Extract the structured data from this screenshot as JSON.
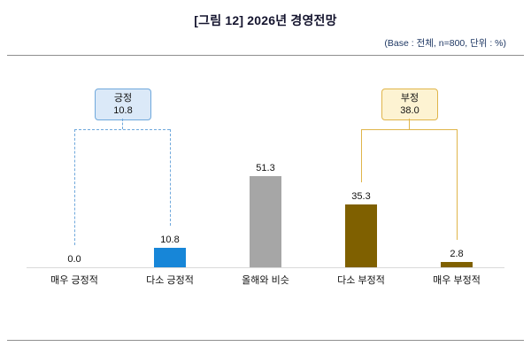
{
  "header": {
    "title": "[그림 12] 2026년 경영전망",
    "base_note": "(Base : 전체, n=800, 단위 : %)"
  },
  "chart_data": {
    "type": "bar",
    "title": "[그림 12] 2026년 경영전망",
    "categories": [
      "매우 긍정적",
      "다소 긍정적",
      "올해와 비슷",
      "다소 부정적",
      "매우 부정적"
    ],
    "values": [
      0.0,
      10.8,
      51.3,
      35.3,
      2.8
    ],
    "value_labels": [
      "0.0",
      "10.8",
      "51.3",
      "35.3",
      "2.8"
    ],
    "bar_colors": [
      "#1786d8",
      "#1786d8",
      "#a6a6a6",
      "#7f6000",
      "#7f6000"
    ],
    "xlabel": "",
    "ylabel": "",
    "ylim": [
      0,
      60
    ],
    "grid": false,
    "legend": "none",
    "annotations": [
      {
        "label": "긍정",
        "value": 10.8,
        "value_label": "10.8",
        "span": [
          0,
          1
        ],
        "color": "#6fa8dc",
        "fill": "#dbe9f8",
        "line_style": "dashed"
      },
      {
        "label": "부정",
        "value": 38.0,
        "value_label": "38.0",
        "span": [
          3,
          4
        ],
        "color": "#e0b54a",
        "fill": "#fdf3d2",
        "line_style": "solid"
      }
    ]
  }
}
